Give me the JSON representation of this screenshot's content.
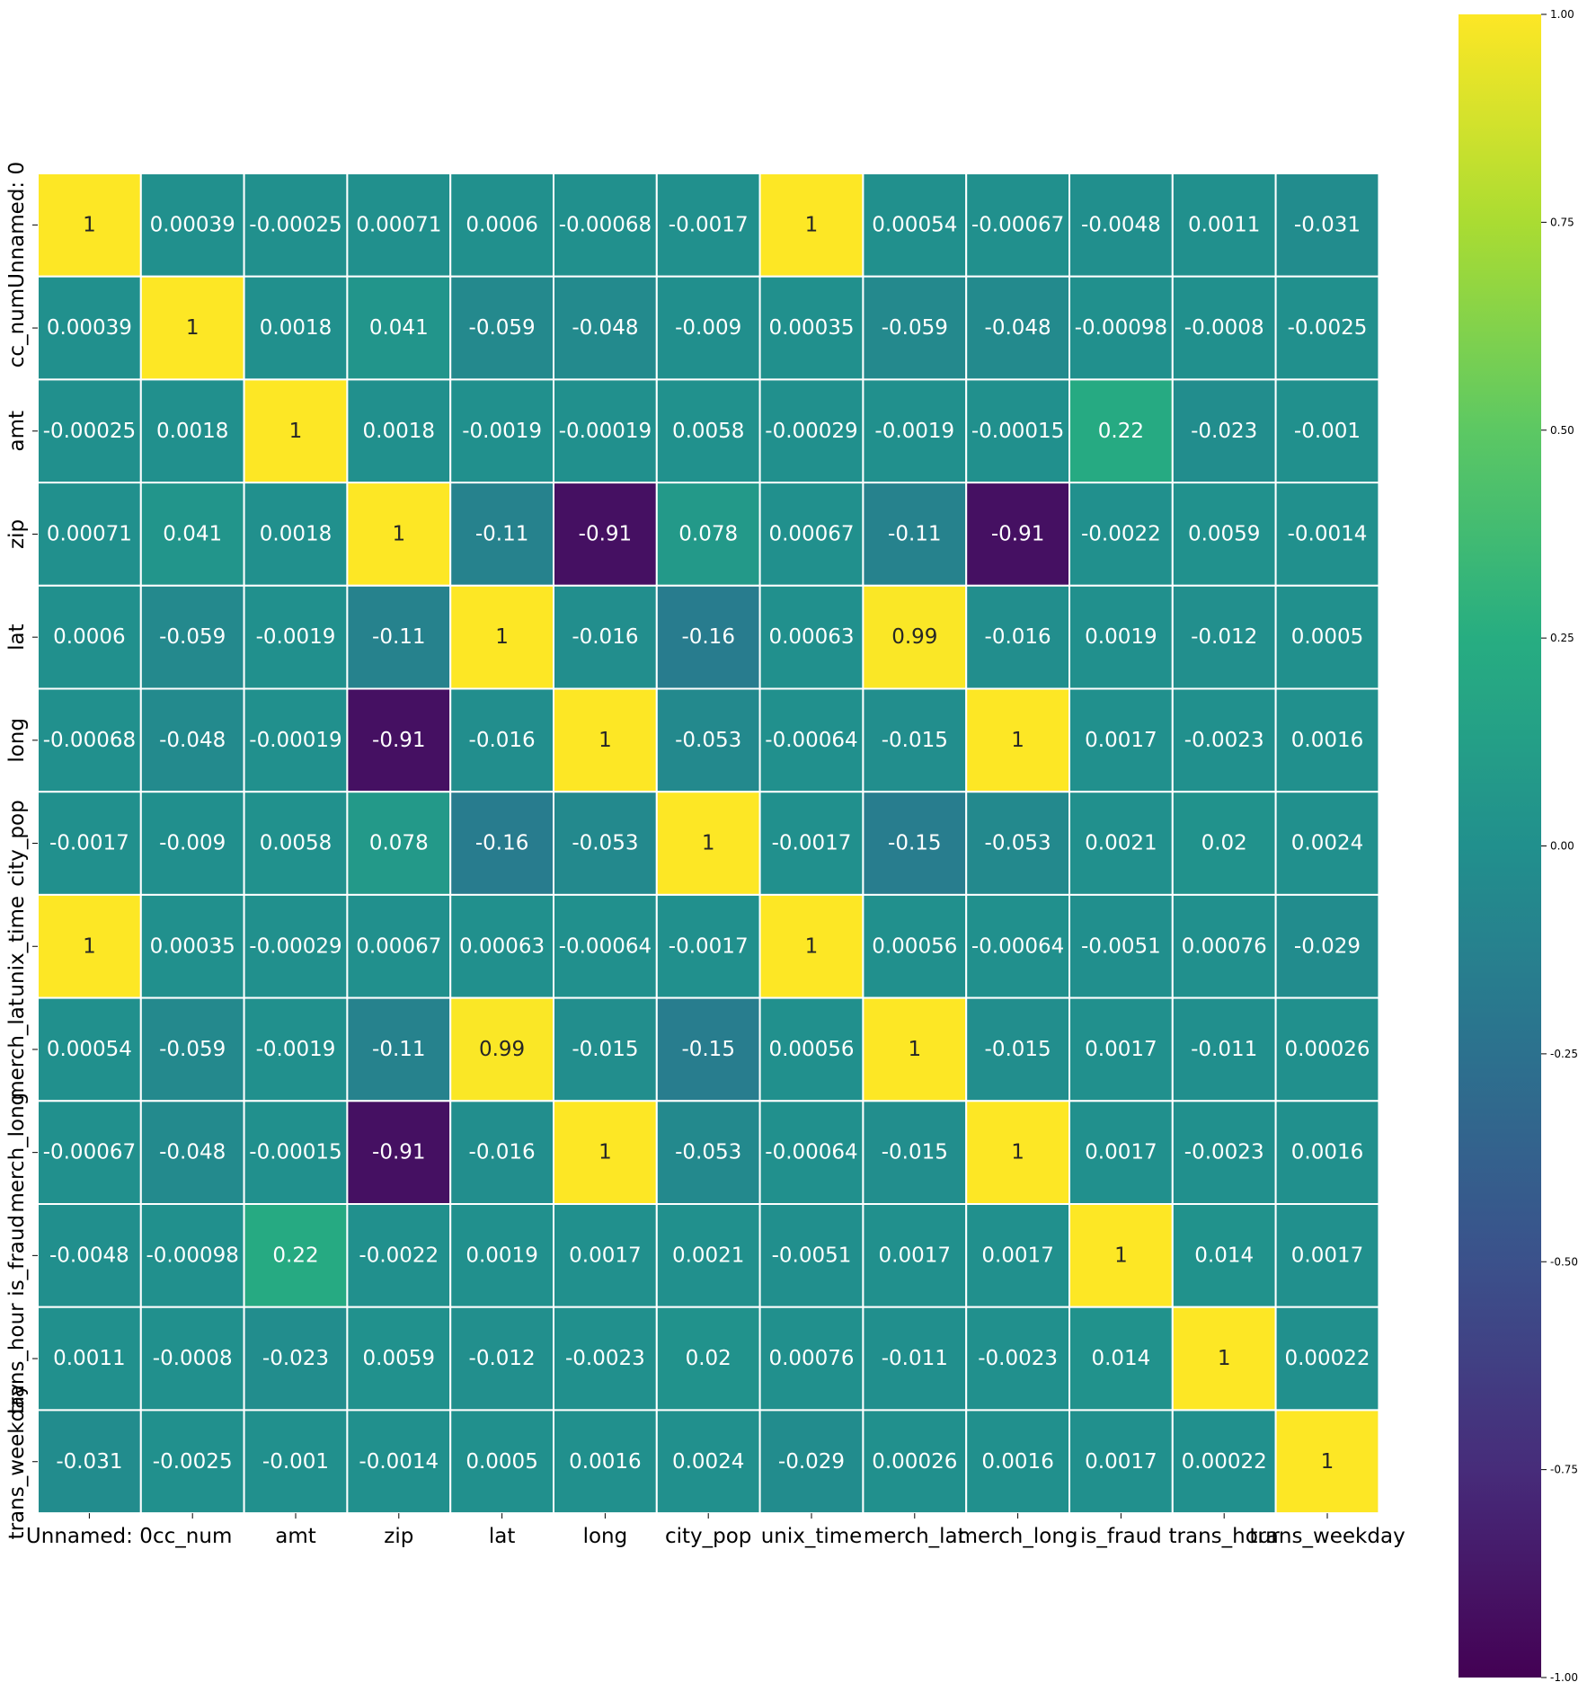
{
  "chart_data": {
    "type": "heatmap",
    "title": "",
    "xlabel": "",
    "ylabel": "",
    "colormap": "viridis",
    "vmin": -1,
    "vmax": 1,
    "grid_line_color": "#ffffff",
    "annotate": true,
    "x_labels": [
      "Unnamed: 0",
      "cc_num",
      "amt",
      "zip",
      "lat",
      "long",
      "city_pop",
      "unix_time",
      "merch_lat",
      "merch_long",
      "is_fraud",
      "trans_hour",
      "trans_weekday"
    ],
    "y_labels": [
      "Unnamed: 0",
      "cc_num",
      "amt",
      "zip",
      "lat",
      "long",
      "city_pop",
      "unix_time",
      "merch_lat",
      "merch_long",
      "is_fraud",
      "trans_hour",
      "trans_weekday"
    ],
    "cells": [
      [
        "1",
        "0.00039",
        "-0.00025",
        "0.00071",
        "0.0006",
        "-0.00068",
        "-0.0017",
        "1",
        "0.00054",
        "-0.00067",
        "-0.0048",
        "0.0011",
        "-0.031"
      ],
      [
        "0.00039",
        "1",
        "0.0018",
        "0.041",
        "-0.059",
        "-0.048",
        "-0.009",
        "0.00035",
        "-0.059",
        "-0.048",
        "-0.00098",
        "-0.0008",
        "-0.0025"
      ],
      [
        "-0.00025",
        "0.0018",
        "1",
        "0.0018",
        "-0.0019",
        "-0.00019",
        "0.0058",
        "-0.00029",
        "-0.0019",
        "-0.00015",
        "0.22",
        "-0.023",
        "-0.001"
      ],
      [
        "0.00071",
        "0.041",
        "0.0018",
        "1",
        "-0.11",
        "-0.91",
        "0.078",
        "0.00067",
        "-0.11",
        "-0.91",
        "-0.0022",
        "0.0059",
        "-0.0014"
      ],
      [
        "0.0006",
        "-0.059",
        "-0.0019",
        "-0.11",
        "1",
        "-0.016",
        "-0.16",
        "0.00063",
        "0.99",
        "-0.016",
        "0.0019",
        "-0.012",
        "0.0005"
      ],
      [
        "-0.00068",
        "-0.048",
        "-0.00019",
        "-0.91",
        "-0.016",
        "1",
        "-0.053",
        "-0.00064",
        "-0.015",
        "1",
        "0.0017",
        "-0.0023",
        "0.0016"
      ],
      [
        "-0.0017",
        "-0.009",
        "0.0058",
        "0.078",
        "-0.16",
        "-0.053",
        "1",
        "-0.0017",
        "-0.15",
        "-0.053",
        "0.0021",
        "0.02",
        "0.0024"
      ],
      [
        "1",
        "0.00035",
        "-0.00029",
        "0.00067",
        "0.00063",
        "-0.00064",
        "-0.0017",
        "1",
        "0.00056",
        "-0.00064",
        "-0.0051",
        "0.00076",
        "-0.029"
      ],
      [
        "0.00054",
        "-0.059",
        "-0.0019",
        "-0.11",
        "0.99",
        "-0.015",
        "-0.15",
        "0.00056",
        "1",
        "-0.015",
        "0.0017",
        "-0.011",
        "0.00026"
      ],
      [
        "-0.00067",
        "-0.048",
        "-0.00015",
        "-0.91",
        "-0.016",
        "1",
        "-0.053",
        "-0.00064",
        "-0.015",
        "1",
        "0.0017",
        "-0.0023",
        "0.0016"
      ],
      [
        "-0.0048",
        "-0.00098",
        "0.22",
        "-0.0022",
        "0.0019",
        "0.0017",
        "0.0021",
        "-0.0051",
        "0.0017",
        "0.0017",
        "1",
        "0.014",
        "0.0017"
      ],
      [
        "0.0011",
        "-0.0008",
        "-0.023",
        "0.0059",
        "-0.012",
        "-0.0023",
        "0.02",
        "0.00076",
        "-0.011",
        "-0.0023",
        "0.014",
        "1",
        "0.00022"
      ],
      [
        "-0.031",
        "-0.0025",
        "-0.001",
        "-0.0014",
        "0.0005",
        "0.0016",
        "0.0024",
        "-0.029",
        "0.00026",
        "0.0016",
        "0.0017",
        "0.00022",
        "1"
      ]
    ],
    "colorbar": {
      "ticks": [
        "-1.00",
        "-0.75",
        "-0.50",
        "-0.25",
        "0.00",
        "0.25",
        "0.50",
        "0.75",
        "1.00"
      ]
    }
  }
}
